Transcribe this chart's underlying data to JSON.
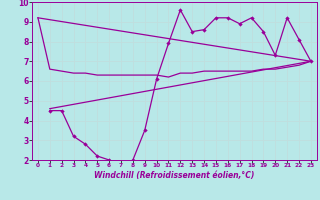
{
  "background_color": "#b8e8e8",
  "line_color": "#990099",
  "grid_color": "#c8e8e8",
  "xlabel": "Windchill (Refroidissement éolien,°C)",
  "xlim": [
    -0.5,
    23.5
  ],
  "ylim": [
    2,
    10
  ],
  "yticks": [
    2,
    3,
    4,
    5,
    6,
    7,
    8,
    9,
    10
  ],
  "xticks": [
    0,
    1,
    2,
    3,
    4,
    5,
    6,
    7,
    8,
    9,
    10,
    11,
    12,
    13,
    14,
    15,
    16,
    17,
    18,
    19,
    20,
    21,
    22,
    23
  ],
  "series1_x": [
    0,
    1,
    2,
    3,
    4,
    5,
    6,
    7,
    8,
    9,
    10,
    11,
    12,
    13,
    14,
    15,
    16,
    17,
    18,
    19,
    20,
    21,
    22,
    23
  ],
  "series1_y": [
    9.2,
    6.6,
    6.5,
    6.4,
    6.4,
    6.3,
    6.3,
    6.3,
    6.3,
    6.3,
    6.3,
    6.2,
    6.4,
    6.4,
    6.5,
    6.5,
    6.5,
    6.5,
    6.5,
    6.6,
    6.6,
    6.7,
    6.8,
    7.0
  ],
  "series2_x": [
    1,
    2,
    3,
    4,
    5,
    6,
    7,
    8,
    9,
    10,
    11,
    12,
    13,
    14,
    15,
    16,
    17,
    18,
    19,
    20,
    21,
    22,
    23
  ],
  "series2_y": [
    4.5,
    4.5,
    3.2,
    2.8,
    2.2,
    2.0,
    1.7,
    2.0,
    3.5,
    6.1,
    7.9,
    9.6,
    8.5,
    8.6,
    9.2,
    9.2,
    8.9,
    9.2,
    8.5,
    7.3,
    9.2,
    8.1,
    7.0
  ],
  "series3_x": [
    1,
    23
  ],
  "series3_y": [
    4.6,
    7.0
  ],
  "series4_x": [
    0,
    23
  ],
  "series4_y": [
    9.2,
    7.0
  ]
}
